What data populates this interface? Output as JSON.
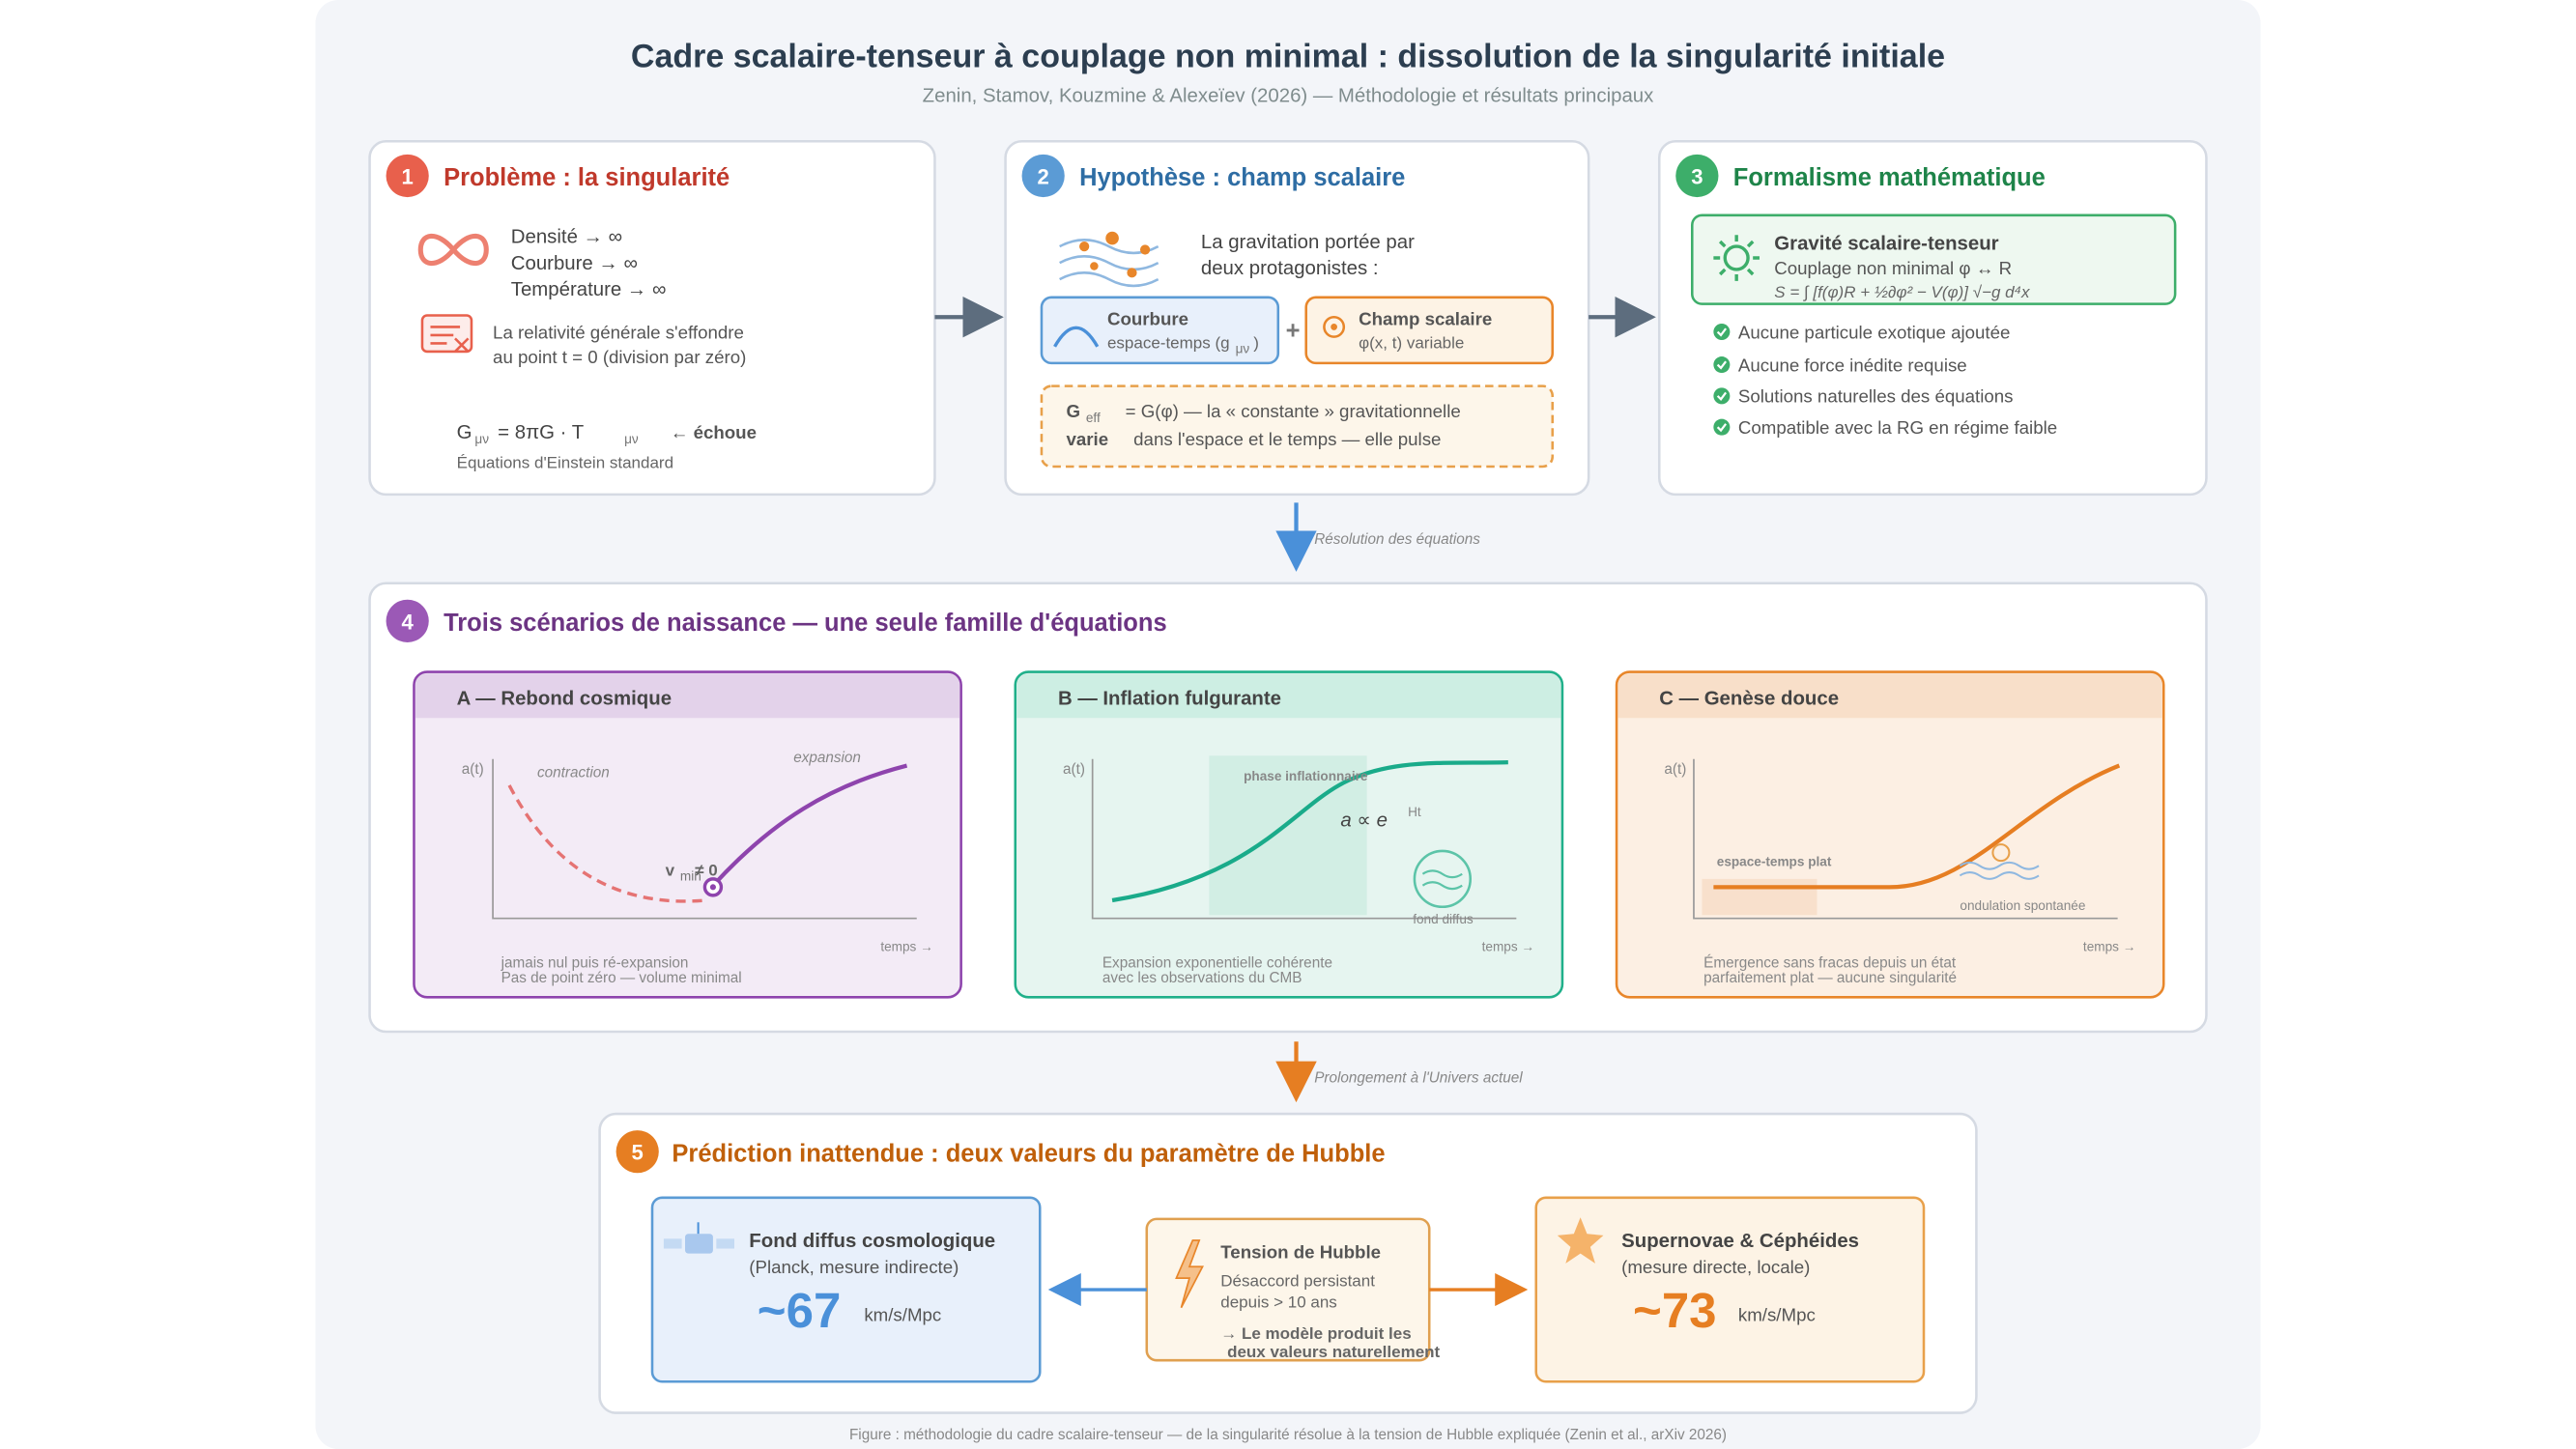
{
  "header": {
    "title": "Cadre scalaire-tenseur à couplage non minimal : dissolution de la singularité initiale",
    "subtitle": "Zenin, Stamov, Kouzmine & Alexeïev (2026) — Méthodologie et résultats principaux"
  },
  "panels": [
    {
      "number": "1",
      "title": "Problème : la singularité",
      "items": [
        "Densité → ∞",
        "Courbure → ∞",
        "Température → ∞"
      ],
      "note": [
        "La relativité générale s'effondre",
        "au point t = 0 (division par zéro)"
      ],
      "equation": {
        "g": "G",
        "g_sub": "μν",
        "rest": "= 8πG · T",
        "t_sub": "μν",
        "fail": "← échoue"
      },
      "caption": "Équations d'Einstein standard"
    },
    {
      "number": "2",
      "title": "Hypothèse : champ scalaire",
      "intro": [
        "La gravitation portée par",
        "deux protagonistes :"
      ],
      "curvature": {
        "title": "Courbure",
        "text": "espace-temps (g",
        "sub": "μν",
        "close": ")"
      },
      "plus": "+",
      "scalar": {
        "title": "Champ scalaire",
        "text": "φ(x, t) variable"
      },
      "note": {
        "g": "G",
        "g_sub": "eff",
        "line1": "= G(φ) — la « constante » gravitationnelle",
        "varie": "varie",
        "line2": "dans l'espace et le temps — elle pulse"
      }
    },
    {
      "number": "3",
      "title": "Formalisme mathématique",
      "box": {
        "title": "Gravité scalaire-tenseur",
        "text": "Couplage non minimal φ ↔ R",
        "formula": "S = ∫ [f(φ)R + ½∂φ² − V(φ)] √−g d⁴x"
      },
      "checks": [
        "Aucune particule exotique ajoutée",
        "Aucune force inédite requise",
        "Solutions naturelles des équations",
        "Compatible avec la RG en régime faible"
      ]
    }
  ],
  "arrow1": "Résolution des équations",
  "scenarios": {
    "number": "4",
    "title": "Trois scénarios de naissance — une seule famille d'équations",
    "items": [
      {
        "title": "A — Rebond cosmique",
        "y_axis": "a(t)",
        "x_axis": "temps →",
        "labels": [
          "contraction",
          "expansion",
          "v",
          "min",
          "≠ 0"
        ],
        "caption": [
          "jamais nul puis ré-expansion",
          "Pas de point zéro — volume minimal"
        ]
      },
      {
        "title": "B — Inflation fulgurante",
        "y_axis": "a(t)",
        "x_axis": "temps →",
        "labels": [
          "phase inflationnaire",
          "a ∝ e",
          "Ht",
          "fond diffus"
        ],
        "caption": [
          "Expansion exponentielle cohérente",
          "avec les observations du CMB"
        ]
      },
      {
        "title": "C — Genèse douce",
        "y_axis": "a(t)",
        "x_axis": "temps →",
        "labels": [
          "espace-temps plat",
          "ondulation spontanée"
        ],
        "caption": [
          "Émergence sans fracas depuis un état",
          "parfaitement plat — aucune singularité"
        ]
      }
    ]
  },
  "arrow2": "Prolongement à l'Univers actuel",
  "prediction": {
    "number": "5",
    "title": "Prédiction inattendue : deux valeurs du paramètre de Hubble",
    "left": {
      "title": "Fond diffus cosmologique",
      "sub": "(Planck, mesure indirecte)",
      "value": "~67",
      "unit": "km/s/Mpc"
    },
    "center": {
      "title": "Tension de Hubble",
      "lines": [
        "Désaccord persistant",
        "depuis > 10 ans"
      ],
      "result": [
        "→ Le modèle produit les",
        "deux valeurs naturellement"
      ]
    },
    "right": {
      "title": "Supernovae & Céphéides",
      "sub": "(mesure directe, locale)",
      "value": "~73",
      "unit": "km/s/Mpc"
    }
  },
  "footer": "Figure : méthodologie du cadre scalaire-tenseur — de la singularité résolue à la tension de Hubble expliquée (Zenin et al., arXiv 2026)"
}
